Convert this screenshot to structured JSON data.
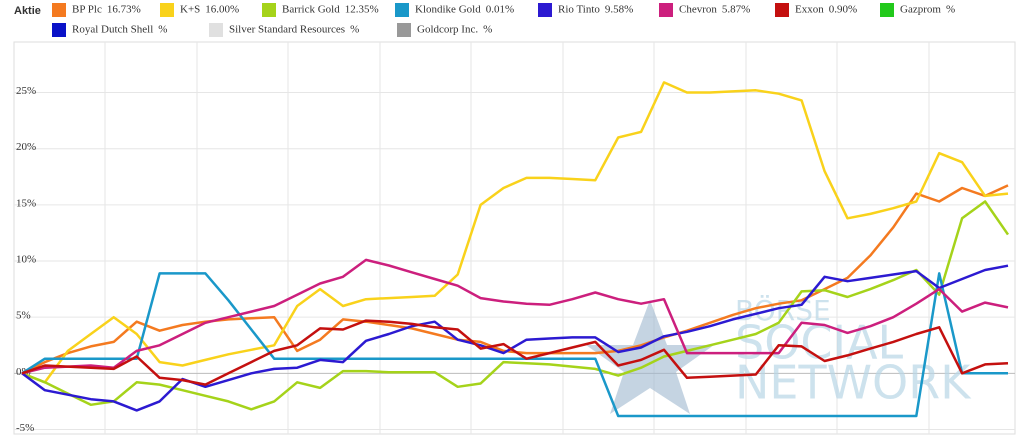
{
  "chart_data": {
    "type": "line",
    "legend_title": "Aktie",
    "watermark": [
      "BÖRSE",
      "SOCIAL",
      "NETWORK"
    ],
    "categories": [
      null,
      null,
      null,
      null,
      null,
      null,
      null,
      null,
      null,
      null,
      null,
      null,
      null,
      null,
      null,
      null,
      null,
      null,
      null,
      null,
      null,
      null,
      null,
      null,
      null,
      null,
      null,
      null,
      null,
      null,
      null,
      null,
      null,
      null,
      null,
      null,
      null,
      null,
      null,
      null,
      null,
      null,
      null,
      null
    ],
    "ylim": [
      -5.4,
      29.5
    ],
    "yticks": [
      {
        "value": 25,
        "label": "25%"
      },
      {
        "value": 20,
        "label": "20%"
      },
      {
        "value": 15,
        "label": "15%"
      },
      {
        "value": 10,
        "label": "10%"
      },
      {
        "value": 5,
        "label": "5%"
      },
      {
        "value": 0,
        "label": "0%"
      },
      {
        "value": -5,
        "label": "-5%"
      }
    ],
    "grid": true,
    "series": [
      {
        "name": "BP Plc",
        "change": 16.73,
        "change_label": "16.73%",
        "color": "#f47a20",
        "values": [
          0,
          1.0,
          1.8,
          2.4,
          2.8,
          4.6,
          3.8,
          4.3,
          4.6,
          4.8,
          4.9,
          5.0,
          2.0,
          3.0,
          4.8,
          4.6,
          4.3,
          4.0,
          3.5,
          3.0,
          2.8,
          2.0,
          1.8,
          1.8,
          1.8,
          1.8,
          2.0,
          2.5,
          3.2,
          3.8,
          4.5,
          5.2,
          5.8,
          6.2,
          6.5,
          7.5,
          8.5,
          10.5,
          13.0,
          16.0,
          15.3,
          16.5,
          15.8,
          16.73
        ]
      },
      {
        "name": "K+S",
        "change": 16.0,
        "change_label": "16.00%",
        "color": "#f9d21b",
        "values": [
          0,
          -0.8,
          2.0,
          3.5,
          5.0,
          3.5,
          1.0,
          0.7,
          1.2,
          1.7,
          2.1,
          2.5,
          6.0,
          7.5,
          6.0,
          6.6,
          6.7,
          6.8,
          6.9,
          8.8,
          15.0,
          16.5,
          17.4,
          17.4,
          17.3,
          17.2,
          21.0,
          21.5,
          25.9,
          25.0,
          25.0,
          25.1,
          25.2,
          24.9,
          24.3,
          18.0,
          13.8,
          14.2,
          14.7,
          15.3,
          19.6,
          18.8,
          15.8,
          16.0
        ]
      },
      {
        "name": "Barrick Gold",
        "change": 12.35,
        "change_label": "12.35%",
        "color": "#a5d31a",
        "values": [
          0,
          -0.8,
          -1.8,
          -2.8,
          -2.5,
          -0.8,
          -1.0,
          -1.5,
          -2.0,
          -2.5,
          -3.2,
          -2.5,
          -0.8,
          -1.3,
          0.2,
          0.2,
          0.1,
          0.1,
          0.1,
          -1.2,
          -0.9,
          1.0,
          0.9,
          0.8,
          0.6,
          0.4,
          -0.2,
          0.5,
          1.5,
          2.0,
          2.5,
          3.0,
          3.5,
          4.5,
          7.3,
          7.4,
          6.8,
          7.5,
          8.3,
          9.2,
          7.0,
          13.8,
          15.3,
          12.35
        ]
      },
      {
        "name": "Klondike Gold",
        "change": 0.01,
        "change_label": "0.01%",
        "color": "#1a98c9",
        "values": [
          0,
          1.3,
          1.3,
          1.3,
          1.3,
          1.3,
          8.9,
          8.9,
          8.9,
          6.5,
          3.9,
          1.3,
          1.3,
          1.3,
          1.3,
          1.3,
          1.3,
          1.3,
          1.3,
          1.3,
          1.3,
          1.3,
          1.3,
          1.3,
          1.3,
          1.3,
          -3.8,
          -3.8,
          -3.8,
          -3.8,
          -3.8,
          -3.8,
          -3.8,
          -3.8,
          -3.8,
          -3.8,
          -3.8,
          -3.8,
          -3.8,
          -3.8,
          8.9,
          0.0,
          0.0,
          0.01
        ]
      },
      {
        "name": "Rio Tinto",
        "change": 9.58,
        "change_label": "9.58%",
        "color": "#2c1ad1",
        "values": [
          0,
          -1.5,
          -1.9,
          -2.3,
          -2.5,
          -3.3,
          -2.5,
          -0.5,
          -1.2,
          -0.6,
          0,
          0.4,
          0.5,
          1.2,
          1.0,
          2.9,
          3.5,
          4.2,
          4.6,
          3.0,
          2.5,
          1.8,
          3.0,
          3.1,
          3.2,
          3.2,
          1.9,
          2.3,
          3.3,
          3.7,
          4.2,
          4.8,
          5.3,
          5.8,
          6.1,
          8.6,
          8.2,
          8.5,
          8.8,
          9.1,
          7.6,
          8.4,
          9.2,
          9.58
        ]
      },
      {
        "name": "Chevron",
        "change": 5.87,
        "change_label": "5.87%",
        "color": "#cc1f7d",
        "values": [
          0,
          0.5,
          0.6,
          0.7,
          0.5,
          2.0,
          2.5,
          3.5,
          4.5,
          5.0,
          5.5,
          6.0,
          7.0,
          8.0,
          8.6,
          10.1,
          9.6,
          9.0,
          8.4,
          7.8,
          6.7,
          6.4,
          6.2,
          6.1,
          6.6,
          7.2,
          6.6,
          6.2,
          6.6,
          1.8,
          1.8,
          1.8,
          1.8,
          1.8,
          4.5,
          4.3,
          3.6,
          4.2,
          5.0,
          6.2,
          7.5,
          5.5,
          6.3,
          5.87
        ]
      },
      {
        "name": "Exxon",
        "change": 0.9,
        "change_label": "0.90%",
        "color": "#c4100f",
        "values": [
          0,
          0.7,
          0.6,
          0.5,
          0.4,
          1.5,
          -0.4,
          -0.6,
          -1.0,
          0,
          1.0,
          2.0,
          2.5,
          4.0,
          3.9,
          4.7,
          4.6,
          4.4,
          4.1,
          3.9,
          2.2,
          2.6,
          1.3,
          1.8,
          2.3,
          2.8,
          0.7,
          1.2,
          2.1,
          -0.4,
          -0.3,
          -0.2,
          -0.1,
          2.5,
          2.4,
          1.1,
          1.6,
          2.2,
          2.8,
          3.5,
          4.1,
          0,
          0.8,
          0.9
        ]
      },
      {
        "name": "Gazprom",
        "change_label": "%",
        "color": "#22c91b"
      },
      {
        "name": "Royal Dutch Shell",
        "change_label": "%",
        "color": "#0a12c8"
      },
      {
        "name": "Silver Standard Resources",
        "change_label": "%",
        "color": "#e0e0e0"
      },
      {
        "name": "Goldcorp Inc.",
        "change_label": "%",
        "color": "#999999"
      }
    ]
  }
}
